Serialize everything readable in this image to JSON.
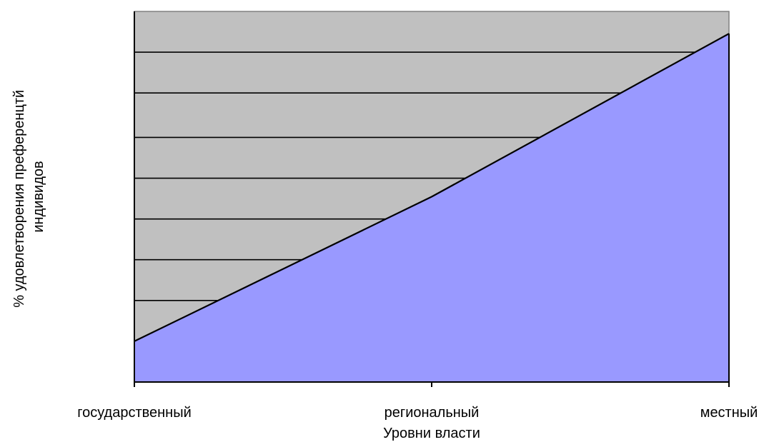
{
  "chart_data": {
    "type": "area",
    "title": "",
    "xlabel": "Уровни власти",
    "ylabel_lines": [
      "% удовлетворения преференцтй",
      "индивидов"
    ],
    "categories": [
      "государственный",
      "региональный",
      "местный"
    ],
    "series": [
      {
        "values": [
          11,
          50,
          94
        ]
      }
    ],
    "ylim": [
      0,
      100
    ],
    "yticks": [
      0,
      11,
      22,
      33,
      44,
      55,
      66,
      78,
      89,
      100
    ],
    "y_tick_labels_shown": false,
    "grid": true,
    "legend": "none",
    "colors": {
      "plot_background": "#c0c0c0",
      "area_fill": "#9999ff",
      "line": "#000000",
      "gridline": "#000000",
      "axis": "#000000"
    }
  }
}
